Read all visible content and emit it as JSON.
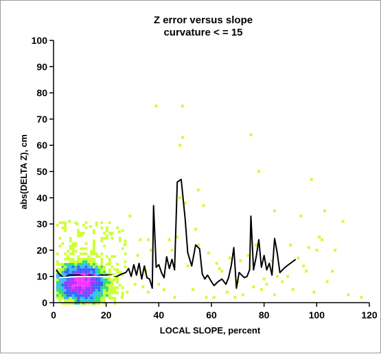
{
  "chart_data": {
    "type": "scatter",
    "title": "Z error versus slope",
    "subtitle": "curvature < = 15",
    "xlabel": "LOCAL SLOPE, percent",
    "ylabel": "abs(DELTA Z), cm",
    "xlim": [
      0,
      120
    ],
    "ylim": [
      0,
      100
    ],
    "xticks": [
      "0",
      "20",
      "40",
      "60",
      "80",
      "100",
      "120"
    ],
    "yticks": [
      "0",
      "10",
      "20",
      "30",
      "40",
      "50",
      "60",
      "70",
      "80",
      "90",
      "100"
    ],
    "grid": false,
    "legend": "none",
    "colors": {
      "sparse": "#ccff33",
      "low": "#33dd66",
      "medium": "#33bbff",
      "high": "#3366ff",
      "dense": "#aa33ff",
      "densest": "#ff33ff",
      "mean_line": "#000000",
      "dense_mean_line": "#ffffff"
    },
    "series": [
      {
        "values": [
          [
            1.0,
            12.5
          ],
          [
            2.5,
            10.5
          ],
          [
            4.0,
            9.5
          ],
          [
            6.0,
            10.5
          ],
          [
            8.0,
            10.5
          ],
          [
            10.0,
            10.5
          ],
          [
            12.0,
            10.0
          ],
          [
            14.0,
            10.5
          ],
          [
            16.0,
            10.0
          ],
          [
            18.0,
            10.5
          ],
          [
            20.0,
            10.5
          ],
          [
            22.0,
            10.5
          ],
          [
            24.0,
            10.0
          ],
          [
            26.0,
            11.0
          ],
          [
            27.5,
            11.5
          ],
          [
            28.5,
            13.0
          ],
          [
            29.5,
            10.0
          ],
          [
            30.5,
            14.5
          ],
          [
            31.5,
            10.5
          ],
          [
            32.5,
            15.0
          ],
          [
            33.5,
            9.0
          ],
          [
            34.5,
            14.0
          ],
          [
            35.5,
            9.5
          ],
          [
            36.5,
            9.0
          ],
          [
            37.5,
            5.5
          ],
          [
            38.0,
            37.0
          ],
          [
            39.0,
            13.5
          ],
          [
            40.0,
            14.5
          ],
          [
            41.0,
            11.5
          ],
          [
            42.0,
            9.5
          ],
          [
            43.0,
            17.5
          ],
          [
            44.0,
            13.0
          ],
          [
            45.0,
            16.5
          ],
          [
            46.0,
            12.5
          ],
          [
            47.0,
            46.0
          ],
          [
            48.5,
            47.0
          ],
          [
            50.0,
            32.0
          ],
          [
            51.0,
            19.0
          ],
          [
            52.5,
            14.0
          ],
          [
            54.0,
            22.0
          ],
          [
            55.5,
            20.5
          ],
          [
            56.5,
            11.0
          ],
          [
            57.5,
            9.0
          ],
          [
            58.5,
            10.5
          ],
          [
            60.0,
            8.0
          ],
          [
            61.0,
            6.5
          ],
          [
            62.5,
            8.0
          ],
          [
            64.0,
            9.0
          ],
          [
            65.5,
            7.0
          ],
          [
            66.5,
            9.5
          ],
          [
            67.5,
            14.0
          ],
          [
            68.5,
            21.0
          ],
          [
            69.5,
            5.5
          ],
          [
            70.5,
            11.5
          ],
          [
            71.5,
            10.5
          ],
          [
            72.5,
            9.5
          ],
          [
            73.5,
            10.0
          ],
          [
            74.5,
            12.5
          ],
          [
            75.0,
            33.0
          ],
          [
            76.0,
            12.5
          ],
          [
            77.0,
            17.5
          ],
          [
            78.0,
            24.0
          ],
          [
            79.0,
            13.5
          ],
          [
            80.0,
            18.0
          ],
          [
            81.0,
            12.5
          ],
          [
            82.0,
            15.0
          ],
          [
            83.0,
            10.5
          ],
          [
            84.0,
            24.5
          ],
          [
            85.0,
            19.0
          ],
          [
            86.0,
            11.5
          ],
          [
            88.0,
            13.5
          ],
          [
            92.0,
            16.5
          ]
        ]
      },
      {
        "values": [
          [
            2,
            9.5
          ],
          [
            10,
            10.0
          ],
          [
            20,
            10.0
          ],
          [
            24,
            10.5
          ]
        ]
      },
      {
        "values": [
          [
            39,
            75
          ],
          [
            49,
            75
          ],
          [
            49,
            63
          ],
          [
            48,
            60
          ],
          [
            75,
            64
          ],
          [
            78,
            50
          ],
          [
            98,
            47
          ],
          [
            55,
            43
          ],
          [
            48,
            40
          ],
          [
            50,
            38
          ],
          [
            57,
            37
          ],
          [
            84,
            35
          ],
          [
            103,
            35
          ],
          [
            110,
            31
          ],
          [
            94,
            33
          ],
          [
            22,
            26
          ],
          [
            25,
            27
          ],
          [
            29,
            33
          ],
          [
            9,
            30
          ],
          [
            6,
            31
          ],
          [
            14,
            29
          ],
          [
            11,
            26
          ],
          [
            33,
            24
          ],
          [
            27,
            22
          ],
          [
            36,
            24
          ],
          [
            44,
            24
          ],
          [
            55,
            22
          ],
          [
            77,
            22
          ],
          [
            100,
            20
          ],
          [
            101,
            25
          ],
          [
            104,
            8
          ],
          [
            112,
            3
          ],
          [
            117,
            2
          ],
          [
            99,
            4
          ],
          [
            91,
            5
          ],
          [
            89,
            10
          ],
          [
            84,
            3
          ],
          [
            79,
            5
          ],
          [
            72,
            3
          ],
          [
            69,
            2
          ],
          [
            66,
            4
          ],
          [
            61,
            2
          ],
          [
            58,
            2
          ],
          [
            53,
            5
          ],
          [
            46,
            2
          ],
          [
            42,
            5
          ],
          [
            40,
            7
          ],
          [
            36,
            4
          ],
          [
            34,
            6
          ],
          [
            31,
            7
          ],
          [
            28,
            4
          ],
          [
            26,
            2
          ],
          [
            32,
            18
          ],
          [
            35,
            12
          ],
          [
            37,
            20
          ],
          [
            45,
            20
          ],
          [
            47,
            25
          ],
          [
            51,
            14
          ],
          [
            54,
            28
          ],
          [
            59,
            19
          ],
          [
            62,
            15
          ],
          [
            63,
            13
          ],
          [
            67,
            17
          ],
          [
            71,
            16
          ],
          [
            74,
            18
          ],
          [
            76,
            6
          ],
          [
            80,
            9
          ],
          [
            81,
            7
          ],
          [
            85,
            10
          ],
          [
            87,
            8
          ],
          [
            90,
            22
          ],
          [
            93,
            17
          ],
          [
            95,
            14
          ],
          [
            96,
            12
          ],
          [
            97,
            21
          ],
          [
            102,
            24
          ],
          [
            106,
            12
          ],
          [
            107,
            20
          ],
          [
            64,
            12
          ],
          [
            70,
            8
          ],
          [
            83,
            16
          ]
        ]
      }
    ]
  }
}
